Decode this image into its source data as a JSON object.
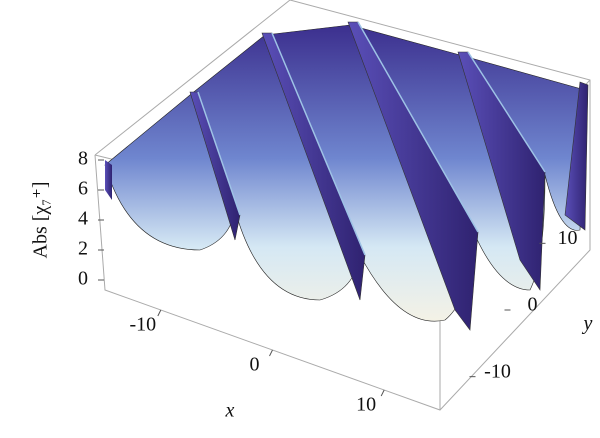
{
  "chart_data": {
    "type": "surface3d",
    "xlabel": "x",
    "ylabel": "y",
    "zlabel": "Abs [χ₇⁺]",
    "xlim": [
      -15,
      15
    ],
    "ylim": [
      -15,
      15
    ],
    "zlim": [
      0,
      8
    ],
    "xticks": [
      -10,
      0,
      10
    ],
    "yticks": [
      -10,
      0,
      10
    ],
    "zticks": [
      0,
      2,
      4,
      6,
      8
    ]
  }
}
